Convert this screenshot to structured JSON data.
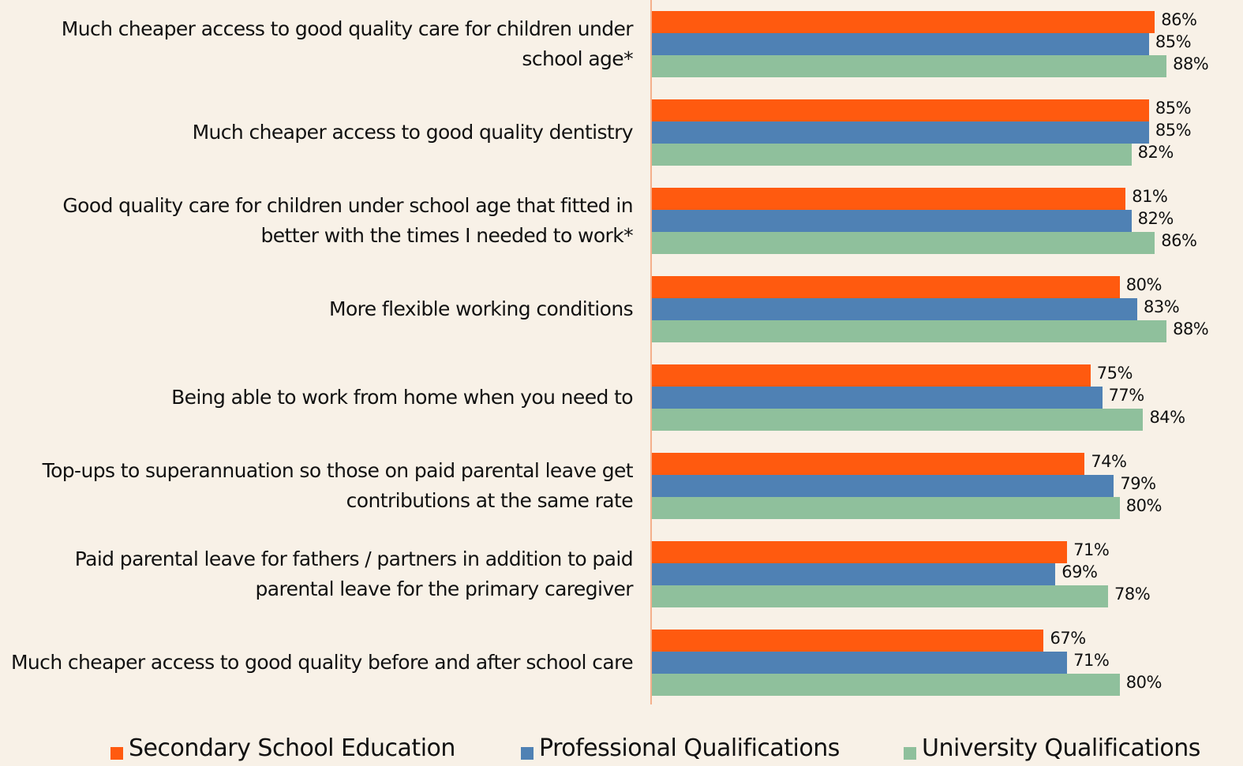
{
  "chart_data": {
    "type": "bar",
    "orientation": "horizontal",
    "categories": [
      "Much cheaper access to good quality care for children under school age*",
      "Much cheaper access to good quality dentistry",
      "Good quality care for children under school age that fitted in better with the times I needed to work*",
      "More flexible working conditions",
      "Being able to work from home when you need to",
      "Top-ups to superannuation so those on paid parental leave get contributions at the same rate",
      "Paid parental leave for fathers / partners in addition to paid parental leave for the primary caregiver",
      "Much cheaper access to good quality before and after school care"
    ],
    "series": [
      {
        "name": "Secondary School Education",
        "color": "#ff5a0f",
        "values": [
          86,
          85,
          81,
          80,
          75,
          74,
          71,
          67
        ],
        "value_labels": [
          "86%",
          "85%",
          "81%",
          "80%",
          "75%",
          "74%",
          "71%",
          "67%"
        ]
      },
      {
        "name": "Professional Qualifications",
        "color": "#4f81b4",
        "values": [
          85,
          85,
          82,
          83,
          77,
          79,
          69,
          71
        ],
        "value_labels": [
          "85%",
          "85%",
          "82%",
          "83%",
          "77%",
          "79%",
          "69%",
          "71%"
        ]
      },
      {
        "name": "University Qualifications",
        "color": "#8fc09c",
        "values": [
          88,
          82,
          86,
          88,
          84,
          80,
          78,
          80
        ],
        "value_labels": [
          "88%",
          "82%",
          "86%",
          "88%",
          "84%",
          "80%",
          "78%",
          "80%"
        ]
      }
    ],
    "xlim": [
      0,
      100
    ],
    "legend": "bottom"
  }
}
